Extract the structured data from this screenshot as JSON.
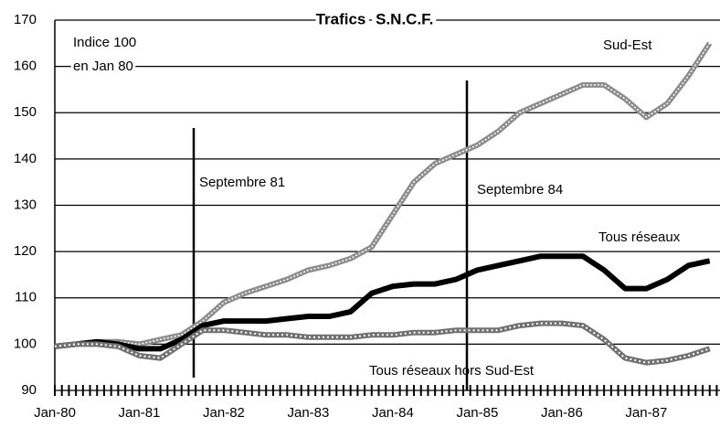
{
  "chart_data": {
    "type": "line",
    "title": "Trafics S.N.C.F.",
    "annotations": [
      "Indice 100",
      "en Jan 80",
      "Septembre 81",
      "Septembre 84"
    ],
    "categories": [
      "Jan-80",
      null,
      null,
      null,
      "Jan-81",
      null,
      null,
      null,
      "Jan-82",
      null,
      null,
      null,
      "Jan-83",
      null,
      null,
      null,
      "Jan-84",
      null,
      null,
      null,
      "Jan-85",
      null,
      null,
      null,
      "Jan-86",
      null,
      null,
      null,
      "Jan-87",
      null,
      null,
      null
    ],
    "series": [
      {
        "name": "Sud-Est",
        "color": "#8c8c8c",
        "values": [
          99.5,
          100,
          100.5,
          100.5,
          100,
          101,
          102,
          105,
          109,
          111,
          112.5,
          114,
          116,
          117,
          118.5,
          121,
          128,
          135,
          139,
          141,
          143,
          146,
          150,
          152,
          154,
          156,
          156,
          153,
          149,
          152,
          158,
          165
        ]
      },
      {
        "name": "Tous réseaux",
        "color": "#000000",
        "values": [
          99.5,
          100,
          100.5,
          100,
          99,
          99,
          101,
          104,
          105,
          105,
          105,
          105.5,
          106,
          106,
          107,
          111,
          112.5,
          113,
          113,
          114,
          116,
          117,
          118,
          119,
          119,
          119,
          116,
          112,
          112,
          114,
          117,
          118
        ]
      },
      {
        "name": "Tous réseaux hors Sud-Est",
        "color": "#707070",
        "values": [
          99.5,
          100,
          100,
          99.5,
          97.5,
          97,
          100,
          103,
          103,
          102.5,
          102,
          102,
          101.5,
          101.5,
          101.5,
          102,
          102,
          102.5,
          102.5,
          103,
          103,
          103,
          104,
          104.5,
          104.5,
          104,
          101,
          97,
          96,
          96.5,
          97.5,
          99
        ]
      }
    ],
    "ylim": [
      90,
      170
    ],
    "yticks": [
      90,
      100,
      110,
      120,
      130,
      140,
      150,
      160,
      170
    ],
    "grid": true
  }
}
